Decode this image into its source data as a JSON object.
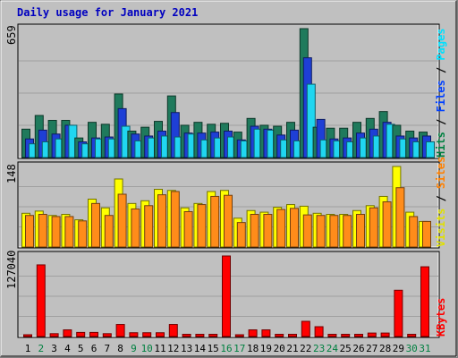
{
  "chart_data": [
    {
      "type": "bar",
      "title": "Daily usage for January 2021",
      "y_max_label": "659",
      "ylim": [
        0,
        659
      ],
      "right_labels": [
        {
          "text": "Hits",
          "color": "#008040"
        },
        {
          "text": " / ",
          "color": "#000000"
        },
        {
          "text": "Files",
          "color": "#0040ff"
        },
        {
          "text": " / ",
          "color": "#000000"
        },
        {
          "text": "Pages",
          "color": "#00e0ff"
        }
      ],
      "categories": [
        "1",
        "2",
        "3",
        "4",
        "5",
        "6",
        "7",
        "8",
        "9",
        "10",
        "11",
        "12",
        "13",
        "14",
        "15",
        "16",
        "17",
        "18",
        "19",
        "20",
        "21",
        "22",
        "23",
        "24",
        "25",
        "26",
        "27",
        "28",
        "29",
        "30",
        "31"
      ],
      "series": [
        {
          "name": "Hits",
          "color": "#1f7a5c",
          "values": [
            145,
            215,
            190,
            190,
            100,
            180,
            170,
            325,
            135,
            155,
            185,
            315,
            165,
            180,
            170,
            175,
            130,
            200,
            165,
            160,
            180,
            659,
            155,
            150,
            150,
            180,
            200,
            235,
            165,
            135,
            130
          ]
        },
        {
          "name": "Files",
          "color": "#1e3fd6",
          "values": [
            95,
            140,
            120,
            165,
            80,
            100,
            105,
            250,
            120,
            110,
            135,
            230,
            125,
            125,
            130,
            135,
            90,
            160,
            145,
            115,
            140,
            510,
            195,
            95,
            100,
            125,
            145,
            180,
            110,
            100,
            110
          ]
        },
        {
          "name": "Pages",
          "color": "#20d6f0",
          "values": [
            70,
            80,
            95,
            165,
            70,
            95,
            95,
            160,
            85,
            100,
            110,
            105,
            120,
            90,
            100,
            105,
            85,
            145,
            140,
            90,
            85,
            375,
            90,
            85,
            80,
            100,
            110,
            170,
            95,
            80,
            80
          ]
        }
      ]
    },
    {
      "type": "bar",
      "y_max_label": "148",
      "ylim": [
        0,
        148
      ],
      "right_labels": [
        {
          "text": "Visits",
          "color": "#e0e000"
        },
        {
          "text": " / ",
          "color": "#000000"
        },
        {
          "text": "Sites",
          "color": "#ff8000"
        }
      ],
      "categories": [
        "1",
        "2",
        "3",
        "4",
        "5",
        "6",
        "7",
        "8",
        "9",
        "10",
        "11",
        "12",
        "13",
        "14",
        "15",
        "16",
        "17",
        "18",
        "19",
        "20",
        "21",
        "22",
        "23",
        "24",
        "25",
        "26",
        "27",
        "28",
        "29",
        "30",
        "31"
      ],
      "series": [
        {
          "name": "Visits",
          "color": "#ffff00",
          "values": [
            62,
            66,
            58,
            60,
            50,
            88,
            72,
            125,
            80,
            85,
            106,
            104,
            72,
            80,
            102,
            104,
            53,
            67,
            64,
            73,
            78,
            75,
            62,
            60,
            60,
            67,
            76,
            93,
            148,
            64,
            47
          ]
        },
        {
          "name": "Sites",
          "color": "#ff8c1a",
          "values": [
            58,
            60,
            56,
            56,
            48,
            80,
            58,
            97,
            70,
            76,
            96,
            102,
            65,
            78,
            93,
            95,
            45,
            60,
            60,
            69,
            71,
            59,
            58,
            58,
            58,
            60,
            72,
            83,
            109,
            56,
            47
          ]
        }
      ]
    },
    {
      "type": "bar",
      "y_max_label": "127040",
      "ylim": [
        0,
        127040
      ],
      "right_labels": [
        {
          "text": "KBytes",
          "color": "#ff0000"
        }
      ],
      "categories": [
        "1",
        "2",
        "3",
        "4",
        "5",
        "6",
        "7",
        "8",
        "9",
        "10",
        "11",
        "12",
        "13",
        "14",
        "15",
        "16",
        "17",
        "18",
        "19",
        "20",
        "21",
        "22",
        "23",
        "24",
        "25",
        "26",
        "27",
        "28",
        "29",
        "30",
        "31"
      ],
      "x_label_colors": [
        "#000000",
        "#008040",
        "#000000",
        "#000000",
        "#000000",
        "#000000",
        "#000000",
        "#000000",
        "#008040",
        "#008040",
        "#000000",
        "#000000",
        "#000000",
        "#000000",
        "#000000",
        "#008040",
        "#008040",
        "#000000",
        "#000000",
        "#000000",
        "#000000",
        "#000000",
        "#008040",
        "#008040",
        "#000000",
        "#000000",
        "#000000",
        "#000000",
        "#000000",
        "#008040",
        "#008040"
      ],
      "series": [
        {
          "name": "KBytes",
          "color": "#ff0000",
          "values": [
            2000,
            113000,
            4500,
            10500,
            6500,
            6500,
            4500,
            19000,
            6000,
            6000,
            6000,
            19000,
            3500,
            3500,
            3500,
            127040,
            2000,
            10500,
            10500,
            3500,
            3500,
            24000,
            15500,
            3500,
            3500,
            3500,
            5500,
            5500,
            73000,
            3500,
            110000
          ]
        }
      ]
    }
  ]
}
